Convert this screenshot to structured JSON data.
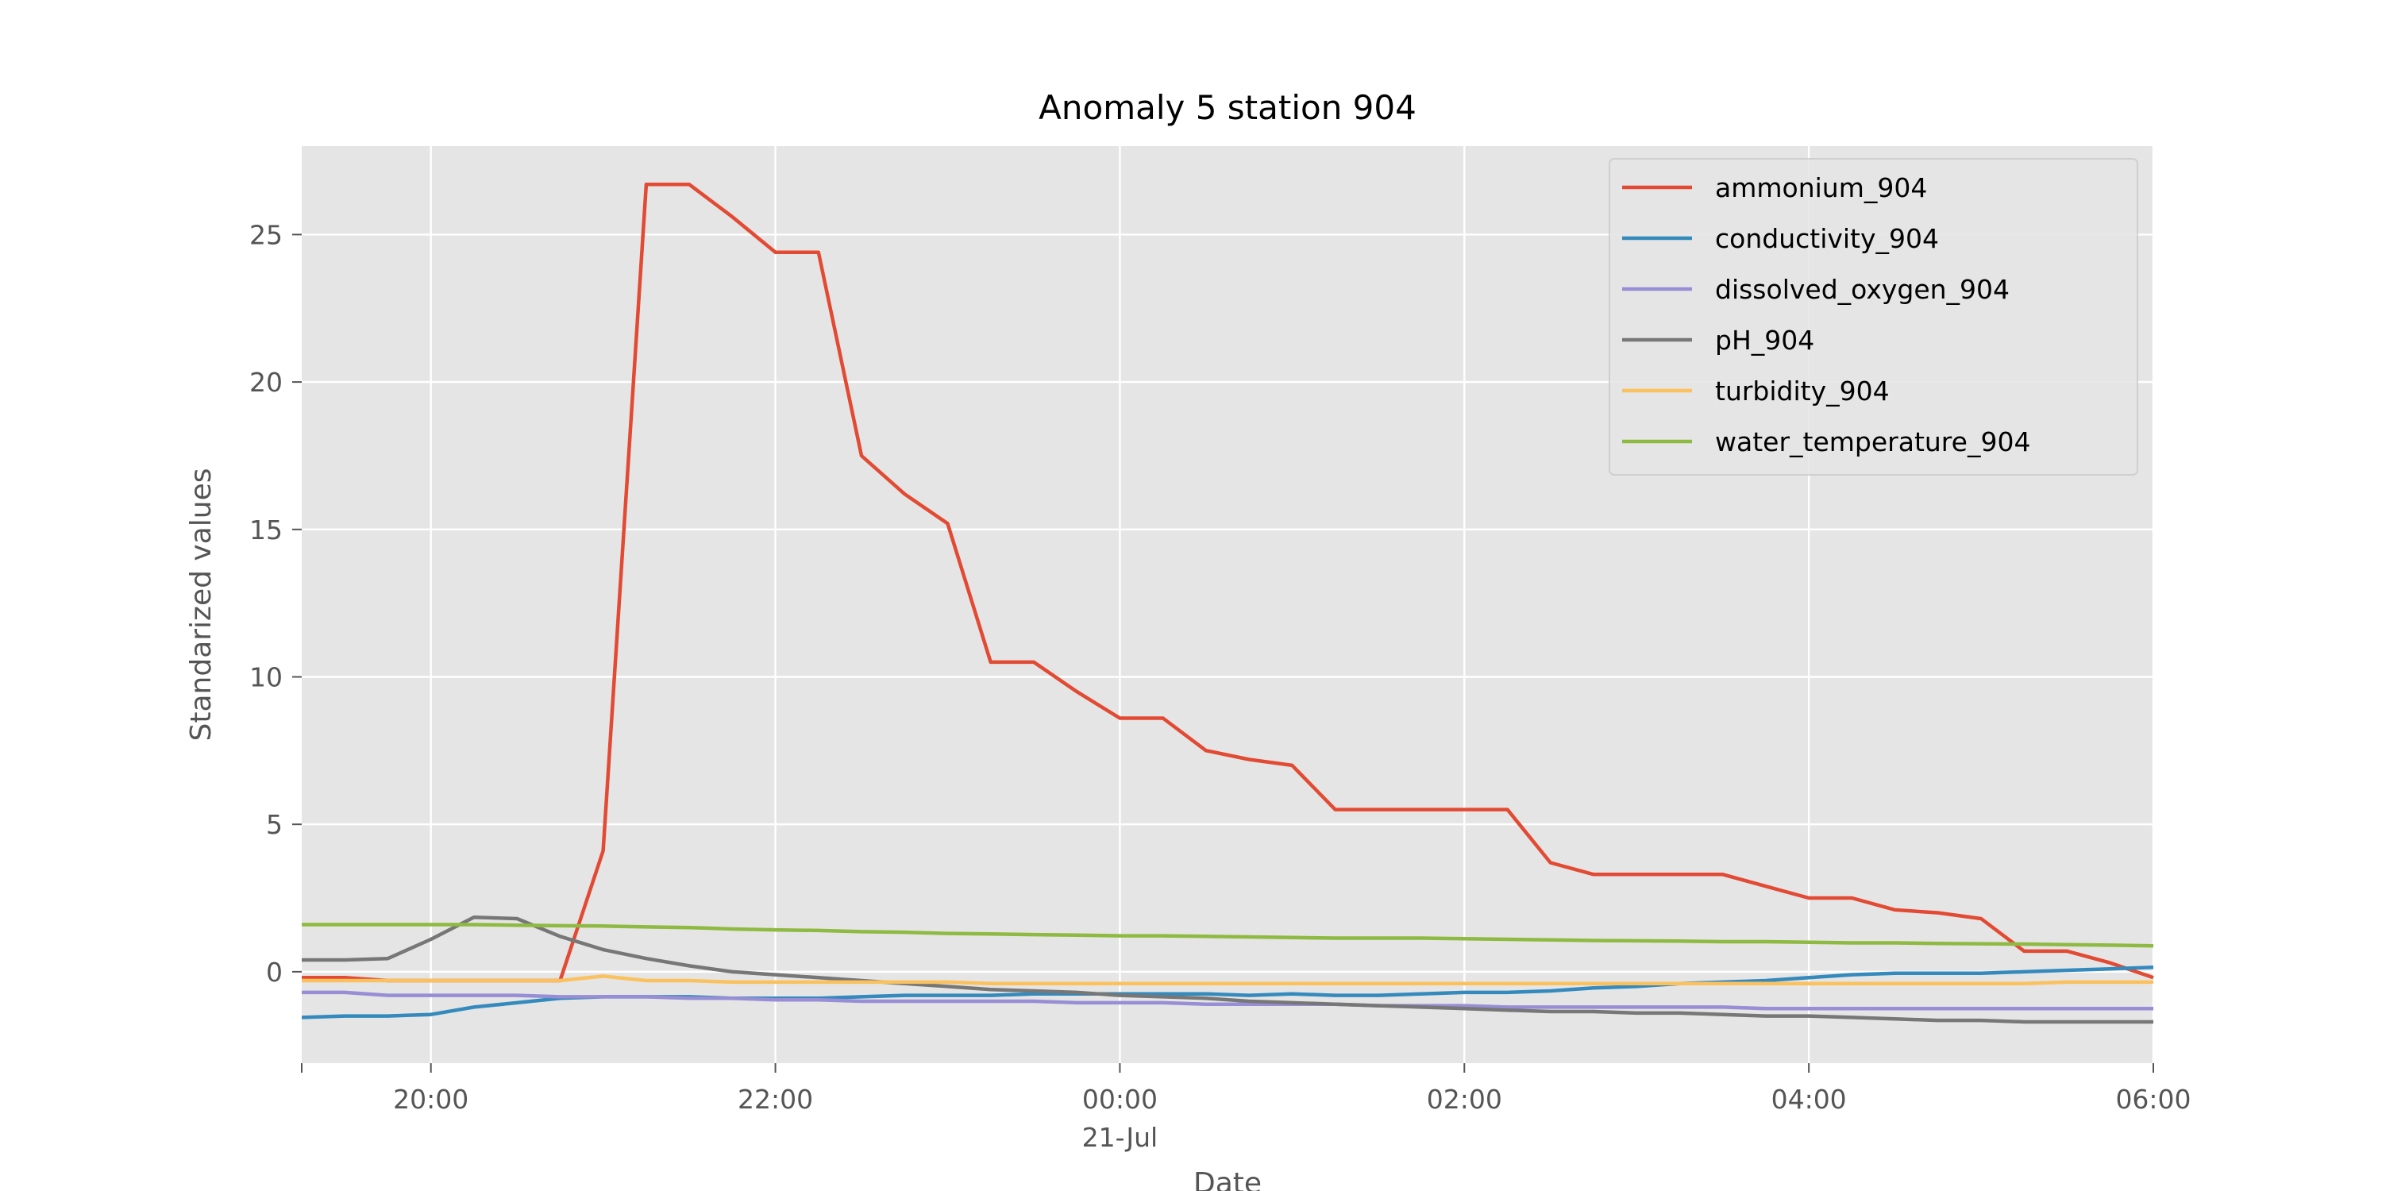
{
  "chart_data": {
    "type": "line",
    "title": "Anomaly 5 station 904",
    "xlabel": "Date",
    "ylabel": "Standarized values",
    "x": [
      "2021-07-20 19:15",
      "2021-07-20 19:30",
      "2021-07-20 19:45",
      "2021-07-20 20:00",
      "2021-07-20 20:15",
      "2021-07-20 20:30",
      "2021-07-20 20:45",
      "2021-07-20 21:00",
      "2021-07-20 21:15",
      "2021-07-20 21:30",
      "2021-07-20 21:45",
      "2021-07-20 22:00",
      "2021-07-20 22:15",
      "2021-07-20 22:30",
      "2021-07-20 22:45",
      "2021-07-20 23:00",
      "2021-07-20 23:15",
      "2021-07-20 23:30",
      "2021-07-20 23:45",
      "2021-07-21 00:00",
      "2021-07-21 00:15",
      "2021-07-21 00:30",
      "2021-07-21 00:45",
      "2021-07-21 01:00",
      "2021-07-21 01:15",
      "2021-07-21 01:30",
      "2021-07-21 01:45",
      "2021-07-21 02:00",
      "2021-07-21 02:15",
      "2021-07-21 02:30",
      "2021-07-21 02:45",
      "2021-07-21 03:00",
      "2021-07-21 03:15",
      "2021-07-21 03:30",
      "2021-07-21 03:45",
      "2021-07-21 04:00",
      "2021-07-21 04:15",
      "2021-07-21 04:30",
      "2021-07-21 04:45",
      "2021-07-21 05:00",
      "2021-07-21 05:15",
      "2021-07-21 05:30",
      "2021-07-21 05:45",
      "2021-07-21 06:00"
    ],
    "xlim": [
      "2021-07-20 19:15",
      "2021-07-21 06:00"
    ],
    "ylim": [
      -3.1,
      28.0
    ],
    "x_ticks": [
      {
        "at": "2021-07-20 20:00",
        "label": "20:00"
      },
      {
        "at": "2021-07-20 22:00",
        "label": "22:00"
      },
      {
        "at": "2021-07-21 00:00",
        "label": "00:00"
      },
      {
        "at": "2021-07-21 02:00",
        "label": "02:00"
      },
      {
        "at": "2021-07-21 04:00",
        "label": "04:00"
      },
      {
        "at": "2021-07-21 06:00",
        "label": "06:00"
      }
    ],
    "x_sublabel": {
      "at": "2021-07-21 00:00",
      "label": "21-Jul"
    },
    "y_ticks": [
      0,
      5,
      10,
      15,
      20,
      25
    ],
    "grid": true,
    "legend_position": "top-right",
    "series": [
      {
        "name": "ammonium_904",
        "color": "#E24A33",
        "values": [
          -0.2,
          -0.2,
          -0.3,
          -0.3,
          -0.3,
          -0.3,
          -0.3,
          4.1,
          26.7,
          26.7,
          25.6,
          24.4,
          24.4,
          17.5,
          16.2,
          15.2,
          10.5,
          10.5,
          9.5,
          8.6,
          8.6,
          7.5,
          7.2,
          7.0,
          5.5,
          5.5,
          5.5,
          5.5,
          5.5,
          3.7,
          3.3,
          3.3,
          3.3,
          3.3,
          2.9,
          2.5,
          2.5,
          2.1,
          2.0,
          1.8,
          0.7,
          0.7,
          0.3,
          -0.2
        ]
      },
      {
        "name": "conductivity_904",
        "color": "#348ABD",
        "values": [
          -1.55,
          -1.5,
          -1.5,
          -1.45,
          -1.2,
          -1.05,
          -0.9,
          -0.85,
          -0.85,
          -0.85,
          -0.9,
          -0.9,
          -0.9,
          -0.85,
          -0.8,
          -0.8,
          -0.8,
          -0.75,
          -0.75,
          -0.75,
          -0.75,
          -0.75,
          -0.8,
          -0.75,
          -0.8,
          -0.8,
          -0.75,
          -0.7,
          -0.7,
          -0.65,
          -0.55,
          -0.5,
          -0.4,
          -0.35,
          -0.3,
          -0.2,
          -0.1,
          -0.05,
          -0.05,
          -0.05,
          0.0,
          0.05,
          0.1,
          0.15
        ]
      },
      {
        "name": "dissolved_oxygen_904",
        "color": "#988ED5",
        "values": [
          -0.7,
          -0.7,
          -0.8,
          -0.8,
          -0.8,
          -0.8,
          -0.85,
          -0.85,
          -0.85,
          -0.9,
          -0.9,
          -0.95,
          -0.95,
          -1.0,
          -1.0,
          -1.0,
          -1.0,
          -1.0,
          -1.05,
          -1.05,
          -1.05,
          -1.1,
          -1.1,
          -1.1,
          -1.1,
          -1.15,
          -1.15,
          -1.15,
          -1.2,
          -1.2,
          -1.2,
          -1.2,
          -1.2,
          -1.2,
          -1.25,
          -1.25,
          -1.25,
          -1.25,
          -1.25,
          -1.25,
          -1.25,
          -1.25,
          -1.25,
          -1.25
        ]
      },
      {
        "name": "pH_904",
        "color": "#777777",
        "values": [
          0.4,
          0.4,
          0.45,
          1.1,
          1.85,
          1.8,
          1.2,
          0.75,
          0.45,
          0.2,
          0.0,
          -0.1,
          -0.2,
          -0.3,
          -0.4,
          -0.5,
          -0.6,
          -0.65,
          -0.7,
          -0.8,
          -0.85,
          -0.9,
          -1.0,
          -1.05,
          -1.1,
          -1.15,
          -1.2,
          -1.25,
          -1.3,
          -1.35,
          -1.35,
          -1.4,
          -1.4,
          -1.45,
          -1.5,
          -1.5,
          -1.55,
          -1.6,
          -1.65,
          -1.65,
          -1.7,
          -1.7,
          -1.7,
          -1.7
        ]
      },
      {
        "name": "turbidity_904",
        "color": "#FBC15E",
        "values": [
          -0.3,
          -0.3,
          -0.3,
          -0.3,
          -0.3,
          -0.3,
          -0.3,
          -0.15,
          -0.3,
          -0.3,
          -0.35,
          -0.35,
          -0.35,
          -0.35,
          -0.35,
          -0.35,
          -0.4,
          -0.4,
          -0.4,
          -0.4,
          -0.4,
          -0.4,
          -0.4,
          -0.4,
          -0.4,
          -0.4,
          -0.4,
          -0.4,
          -0.4,
          -0.4,
          -0.4,
          -0.4,
          -0.4,
          -0.4,
          -0.4,
          -0.4,
          -0.4,
          -0.4,
          -0.4,
          -0.4,
          -0.4,
          -0.35,
          -0.35,
          -0.35
        ]
      },
      {
        "name": "water_temperature_904",
        "color": "#8EBA42",
        "values": [
          1.6,
          1.6,
          1.6,
          1.6,
          1.6,
          1.58,
          1.56,
          1.55,
          1.52,
          1.5,
          1.45,
          1.42,
          1.4,
          1.36,
          1.34,
          1.3,
          1.28,
          1.26,
          1.24,
          1.22,
          1.22,
          1.2,
          1.18,
          1.16,
          1.14,
          1.14,
          1.14,
          1.12,
          1.1,
          1.08,
          1.06,
          1.05,
          1.04,
          1.02,
          1.02,
          1.0,
          0.98,
          0.98,
          0.96,
          0.95,
          0.94,
          0.92,
          0.9,
          0.88
        ]
      }
    ]
  }
}
